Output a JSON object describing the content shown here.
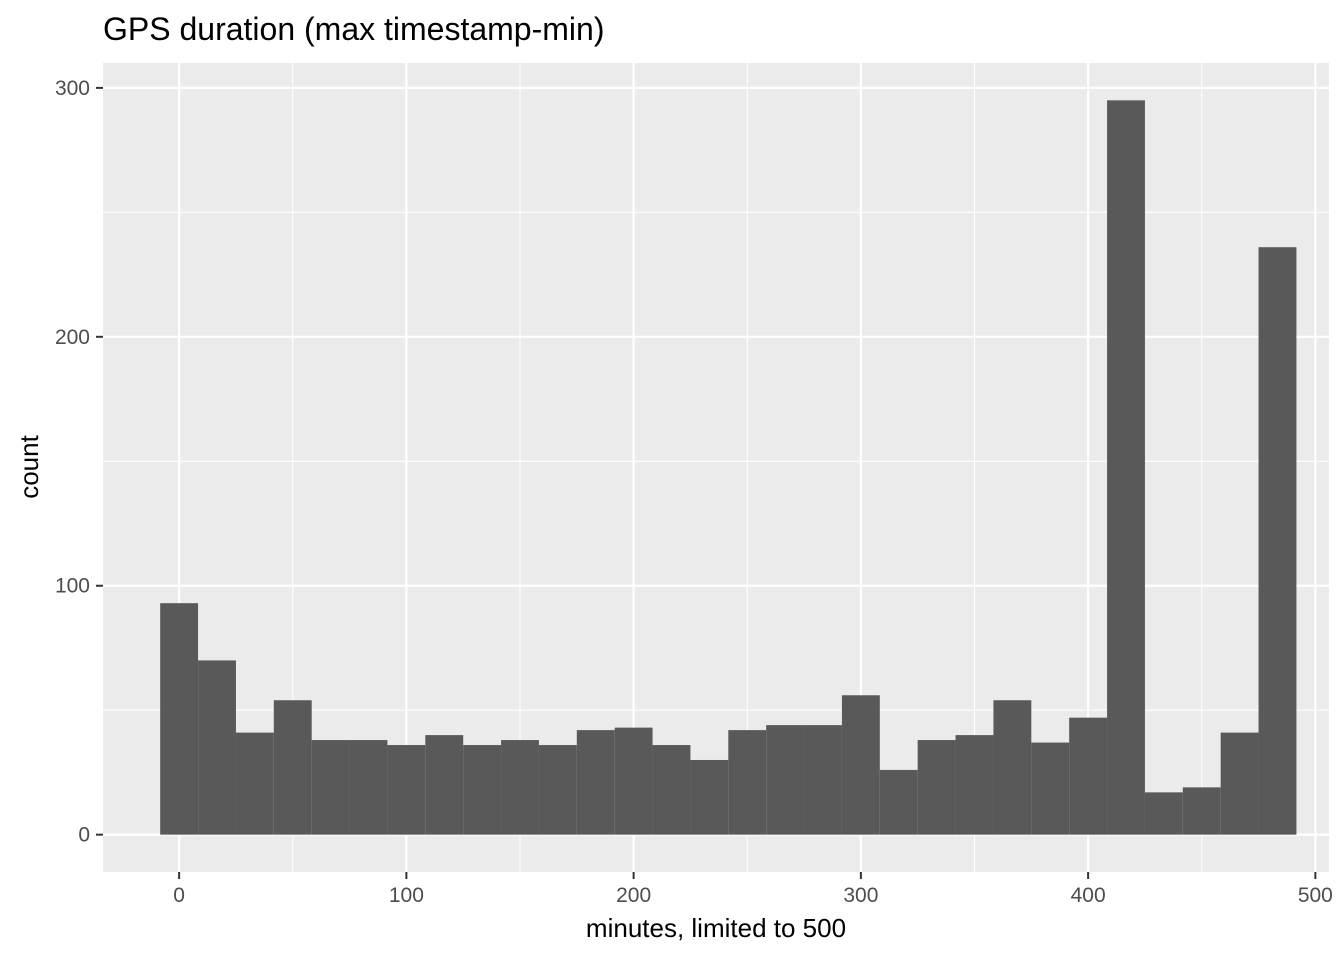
{
  "chart_data": {
    "type": "bar",
    "title": "GPS duration (max timestamp-min)",
    "xlabel": "minutes, limited to 500",
    "ylabel": "count",
    "xlim": [
      -33.5,
      506
    ],
    "ylim": [
      -15,
      310
    ],
    "x_ticks": [
      0,
      100,
      200,
      300,
      400,
      500
    ],
    "y_ticks": [
      0,
      100,
      200,
      300
    ],
    "bin_width": 16.67,
    "bins": [
      {
        "x": 0,
        "count": 93
      },
      {
        "x": 16.67,
        "count": 70
      },
      {
        "x": 33.33,
        "count": 41
      },
      {
        "x": 50,
        "count": 54
      },
      {
        "x": 66.67,
        "count": 38
      },
      {
        "x": 83.33,
        "count": 38
      },
      {
        "x": 100,
        "count": 36
      },
      {
        "x": 116.67,
        "count": 40
      },
      {
        "x": 133.33,
        "count": 36
      },
      {
        "x": 150,
        "count": 38
      },
      {
        "x": 166.67,
        "count": 36
      },
      {
        "x": 183.33,
        "count": 42
      },
      {
        "x": 200,
        "count": 43
      },
      {
        "x": 216.67,
        "count": 36
      },
      {
        "x": 233.33,
        "count": 30
      },
      {
        "x": 250,
        "count": 42
      },
      {
        "x": 266.67,
        "count": 44
      },
      {
        "x": 283.33,
        "count": 44
      },
      {
        "x": 300,
        "count": 56
      },
      {
        "x": 316.67,
        "count": 26
      },
      {
        "x": 333.33,
        "count": 38
      },
      {
        "x": 350,
        "count": 40
      },
      {
        "x": 366.67,
        "count": 54
      },
      {
        "x": 383.33,
        "count": 37
      },
      {
        "x": 400,
        "count": 47
      },
      {
        "x": 416.67,
        "count": 295
      },
      {
        "x": 433.33,
        "count": 17
      },
      {
        "x": 450,
        "count": 19
      },
      {
        "x": 466.67,
        "count": 41
      },
      {
        "x": 483.33,
        "count": 236
      }
    ],
    "grid": true,
    "colors": {
      "panel": "#ebebeb",
      "grid_major": "#ffffff",
      "bar": "#595959",
      "tick": "#333333",
      "tick_label": "#4d4d4d"
    }
  }
}
